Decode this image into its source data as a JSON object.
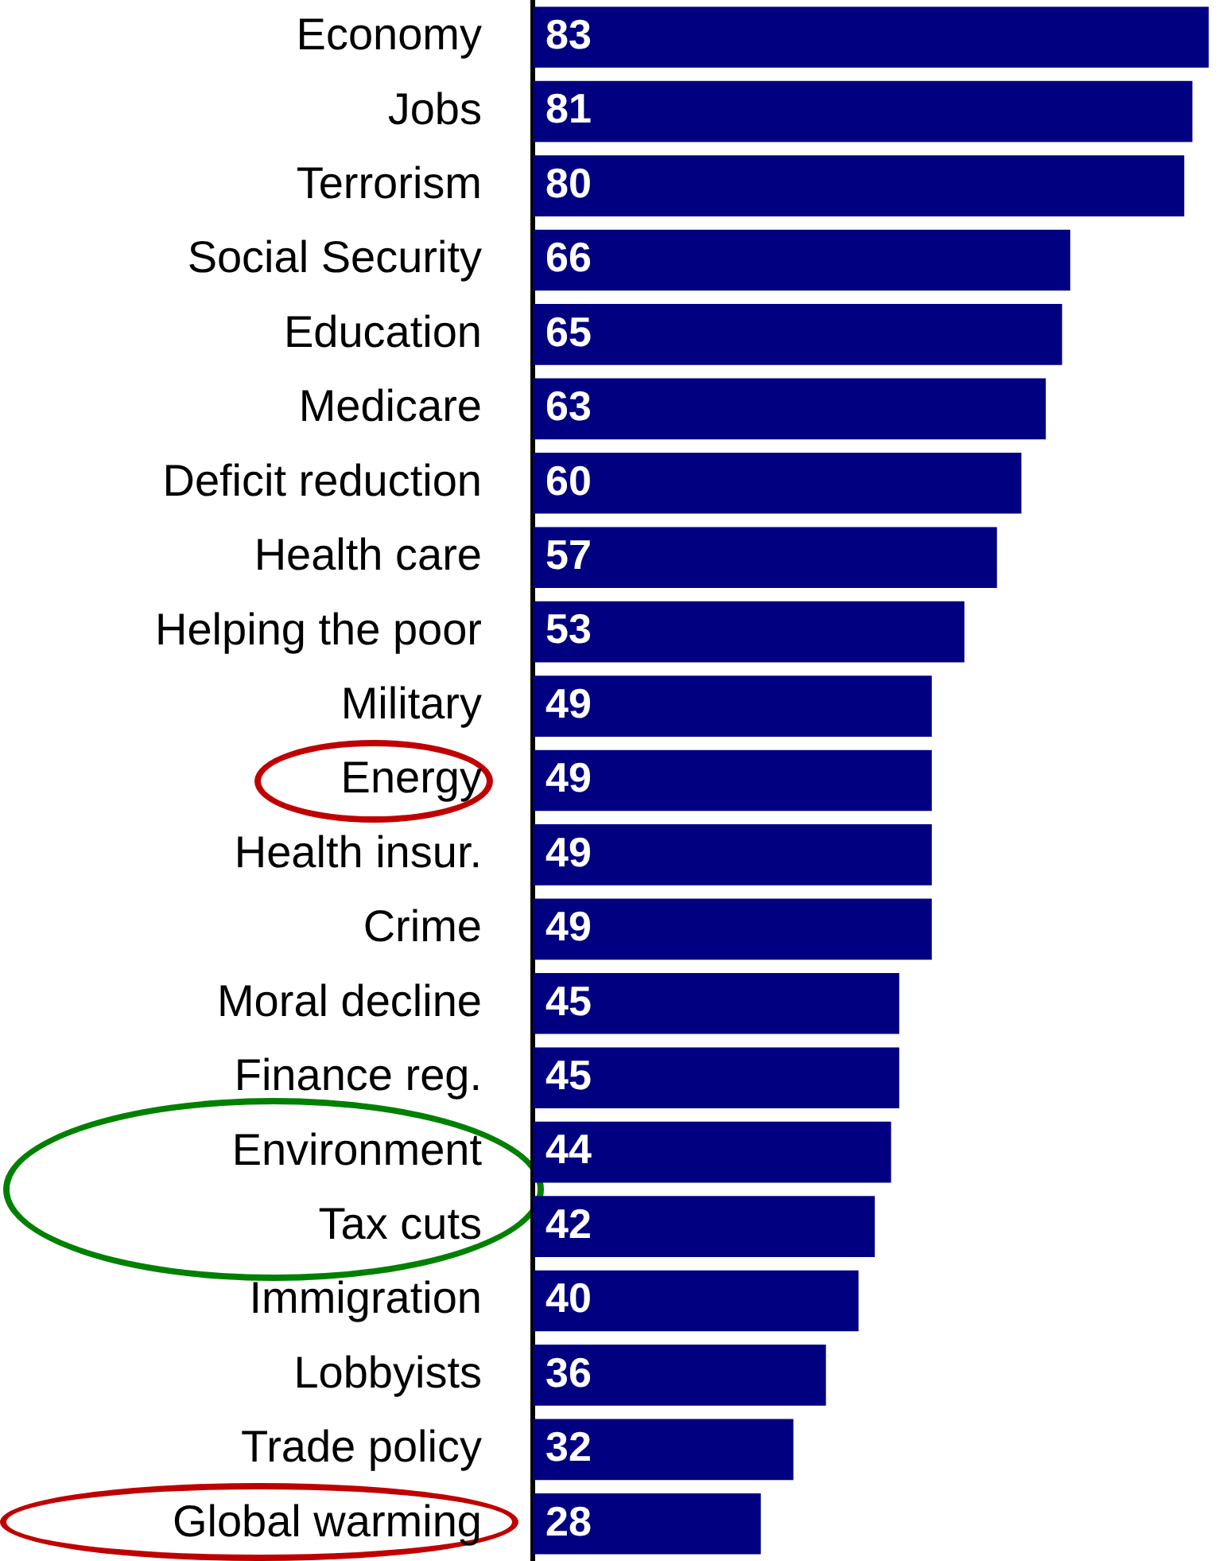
{
  "chart_data": {
    "type": "bar",
    "orientation": "horizontal",
    "categories": [
      "Economy",
      "Jobs",
      "Terrorism",
      "Social Security",
      "Education",
      "Medicare",
      "Deficit reduction",
      "Health care",
      "Helping the poor",
      "Military",
      "Energy",
      "Health insur.",
      "Crime",
      "Moral decline",
      "Finance reg.",
      "Environment",
      "Tax cuts",
      "Immigration",
      "Lobbyists",
      "Trade policy",
      "Global warming"
    ],
    "values": [
      83,
      81,
      80,
      66,
      65,
      63,
      60,
      57,
      53,
      49,
      49,
      49,
      49,
      45,
      45,
      44,
      42,
      40,
      36,
      32,
      28
    ],
    "color": "#000080",
    "data_labels": true,
    "grid": false,
    "legend": false
  }
}
